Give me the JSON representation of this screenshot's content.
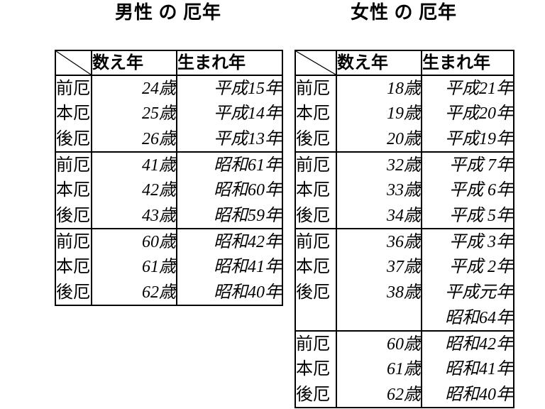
{
  "colors": {
    "background": "#ffffff",
    "text": "#000000",
    "border": "#000000"
  },
  "tables": [
    {
      "title": "男性 の 厄年",
      "columns": [
        "",
        "数え年",
        "生まれ年"
      ],
      "groups": [
        {
          "rows": [
            {
              "label": "前厄",
              "age": "24歳",
              "year": "平成15年"
            },
            {
              "label": "本厄",
              "age": "25歳",
              "year": "平成14年"
            },
            {
              "label": "後厄",
              "age": "26歳",
              "year": "平成13年"
            }
          ]
        },
        {
          "rows": [
            {
              "label": "前厄",
              "age": "41歳",
              "year": "昭和61年"
            },
            {
              "label": "本厄",
              "age": "42歳",
              "year": "昭和60年"
            },
            {
              "label": "後厄",
              "age": "43歳",
              "year": "昭和59年"
            }
          ]
        },
        {
          "rows": [
            {
              "label": "前厄",
              "age": "60歳",
              "year": "昭和42年"
            },
            {
              "label": "本厄",
              "age": "61歳",
              "year": "昭和41年"
            },
            {
              "label": "後厄",
              "age": "62歳",
              "year": "昭和40年"
            }
          ]
        }
      ]
    },
    {
      "title": "女性 の 厄年",
      "columns": [
        "",
        "数え年",
        "生まれ年"
      ],
      "groups": [
        {
          "rows": [
            {
              "label": "前厄",
              "age": "18歳",
              "year": "平成21年"
            },
            {
              "label": "本厄",
              "age": "19歳",
              "year": "平成20年"
            },
            {
              "label": "後厄",
              "age": "20歳",
              "year": "平成19年"
            }
          ]
        },
        {
          "rows": [
            {
              "label": "前厄",
              "age": "32歳",
              "year": "平成 7年"
            },
            {
              "label": "本厄",
              "age": "33歳",
              "year": "平成 6年"
            },
            {
              "label": "後厄",
              "age": "34歳",
              "year": "平成 5年"
            }
          ]
        },
        {
          "rows": [
            {
              "label": "前厄",
              "age": "36歳",
              "year": "平成 3年"
            },
            {
              "label": "本厄",
              "age": "37歳",
              "year": "平成 2年"
            },
            {
              "label": "後厄",
              "age": "38歳",
              "year": "平成元年"
            },
            {
              "label": "",
              "age": "",
              "year": "昭和64年"
            }
          ]
        },
        {
          "rows": [
            {
              "label": "前厄",
              "age": "60歳",
              "year": "昭和42年"
            },
            {
              "label": "本厄",
              "age": "61歳",
              "year": "昭和41年"
            },
            {
              "label": "後厄",
              "age": "62歳",
              "year": "昭和40年"
            }
          ]
        }
      ]
    }
  ]
}
